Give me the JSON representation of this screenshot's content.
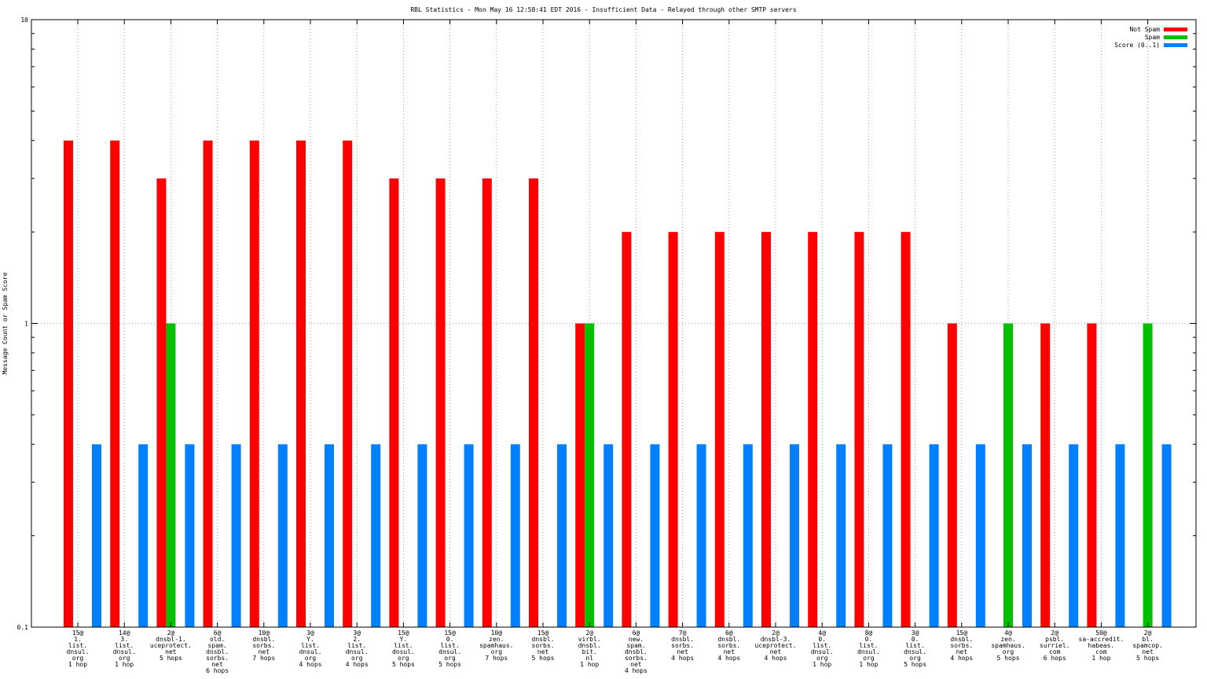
{
  "chart_data": {
    "type": "bar",
    "title": "RBL Statistics - Mon May 16 12:58:41 EDT 2016 - Insufficient Data - Relayed through other SMTP servers",
    "xlabel": "",
    "ylabel": "Message Count or Spam Score",
    "yscale": "log",
    "ylim": [
      0.1,
      10
    ],
    "yticks": [
      "0.1",
      "1",
      "10"
    ],
    "grid": "dotted, at category positions and y = 1",
    "legend_position": "top-right",
    "categories": [
      [
        "15@",
        "1.",
        "list.",
        "dnsul.",
        "org",
        "1 hop"
      ],
      [
        "14@",
        "3.",
        "list.",
        "dnsul.",
        "org",
        "1 hop"
      ],
      [
        "2@",
        "dnsbl-1.",
        "uceprotect.",
        "net",
        "5 hops"
      ],
      [
        "6@",
        "old.",
        "spam.",
        "dnsbl.",
        "sorbs.",
        "net",
        "6 hops"
      ],
      [
        "10@",
        "dnsbl.",
        "sorbs.",
        "net",
        "7 hops"
      ],
      [
        "3@",
        "Y.",
        "list.",
        "dnsul.",
        "org",
        "4 hops"
      ],
      [
        "3@",
        "2.",
        "list.",
        "dnsul.",
        "org",
        "4 hops"
      ],
      [
        "15@",
        "Y.",
        "list.",
        "dnsul.",
        "org",
        "5 hops"
      ],
      [
        "15@",
        "0.",
        "list.",
        "dnsul.",
        "org",
        "5 hops"
      ],
      [
        "10@",
        "zen.",
        "spamhaus.",
        "org",
        "7 hops"
      ],
      [
        "15@",
        "dnsbl.",
        "sorbs.",
        "net",
        "5 hops"
      ],
      [
        "2@",
        "virbl.",
        "dnsbl.",
        "bit.",
        "nl",
        "1 hop"
      ],
      [
        "6@",
        "new.",
        "spam.",
        "dnsbl.",
        "sorbs.",
        "net",
        "4 hops"
      ],
      [
        "7@",
        "dnsbl.",
        "sorbs.",
        "net",
        "4 hops"
      ],
      [
        "6@",
        "dnsbl.",
        "sorbs.",
        "net",
        "4 hops"
      ],
      [
        "2@",
        "dnsbl-3.",
        "uceprotect.",
        "net",
        "4 hops"
      ],
      [
        "4@",
        "0.",
        "list.",
        "dnsul.",
        "org",
        "1 hop"
      ],
      [
        "8@",
        "0.",
        "list.",
        "dnsul.",
        "org",
        "1 hop"
      ],
      [
        "3@",
        "0.",
        "list.",
        "dnsul.",
        "org",
        "5 hops"
      ],
      [
        "15@",
        "dnsbl.",
        "sorbs.",
        "net",
        "4 hops"
      ],
      [
        "4@",
        "zen.",
        "spamhaus.",
        "org",
        "5 hops"
      ],
      [
        "2@",
        "psbl.",
        "surriel.",
        "com",
        "6 hops"
      ],
      [
        "50@",
        "sa-accredit.",
        "habeas.",
        "com",
        "1 hop"
      ],
      [
        "2@",
        "bl.",
        "spamcop.",
        "net",
        "5 hops"
      ]
    ],
    "series": [
      {
        "name": "Not Spam",
        "color": "#ff0000",
        "values": [
          4,
          4,
          3,
          4,
          4,
          4,
          4,
          3,
          3,
          3,
          3,
          1,
          2,
          2,
          2,
          2,
          2,
          2,
          2,
          1,
          0,
          1,
          1,
          0
        ]
      },
      {
        "name": "Spam",
        "color": "#00c000",
        "values": [
          0,
          0,
          1,
          0,
          0,
          0,
          0,
          0,
          0,
          0,
          0,
          1,
          0,
          0,
          0,
          0,
          0,
          0,
          0,
          0,
          1,
          0,
          0,
          1
        ]
      },
      {
        "name": "Score (0..1)",
        "color": "#0080ff",
        "values": [
          0.4,
          0.4,
          0.4,
          0.4,
          0.4,
          0.4,
          0.4,
          0.4,
          0.4,
          0.4,
          0.4,
          0.4,
          0.4,
          0.4,
          0.4,
          0.4,
          0.4,
          0.4,
          0.4,
          0.4,
          0.4,
          0.4,
          0.4,
          0.4
        ]
      }
    ]
  }
}
